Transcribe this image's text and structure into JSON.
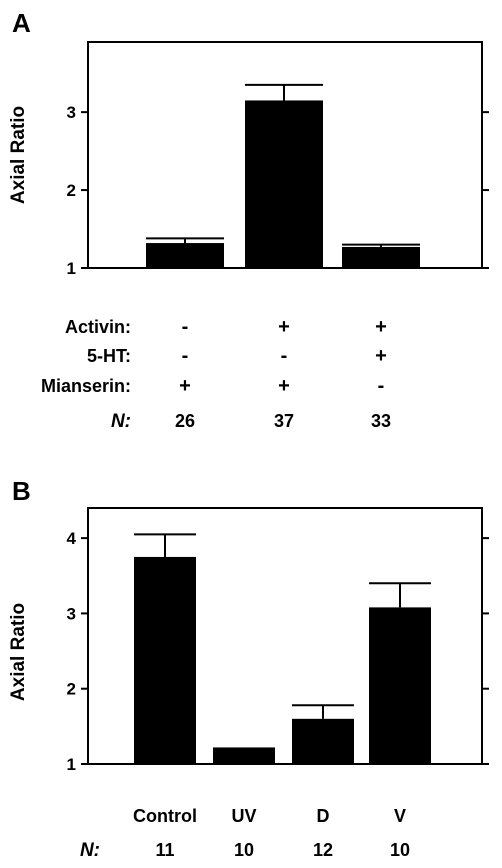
{
  "chart_data": [
    {
      "type": "bar",
      "panel_label": "A",
      "ylabel": "Axial Ratio",
      "ylim": [
        1,
        3.9
      ],
      "yticks": [
        1,
        2,
        3
      ],
      "ytick_labels": [
        "1",
        "2",
        "3"
      ],
      "categories": [
        "",
        "",
        ""
      ],
      "values": [
        1.32,
        3.15,
        1.27
      ],
      "errors": [
        0.06,
        0.2,
        0.03
      ],
      "color": "#000000",
      "conditions": [
        {
          "label": "Activin:",
          "values": [
            "-",
            "+",
            "+"
          ]
        },
        {
          "label": "5-HT:",
          "values": [
            "-",
            "-",
            "+"
          ]
        },
        {
          "label": "Mianserin:",
          "values": [
            "+",
            "+",
            "-"
          ]
        }
      ],
      "n_label": "N:",
      "n_values": [
        "26",
        "37",
        "33"
      ]
    },
    {
      "type": "bar",
      "panel_label": "B",
      "ylabel": "Axial Ratio",
      "ylim": [
        1,
        4.4
      ],
      "yticks": [
        1,
        2,
        3,
        4
      ],
      "ytick_labels": [
        "1",
        "2",
        "3",
        "4"
      ],
      "categories": [
        "Control",
        "UV",
        "D",
        "V"
      ],
      "values": [
        3.75,
        1.22,
        1.6,
        3.08
      ],
      "errors": [
        0.3,
        0.0,
        0.18,
        0.32
      ],
      "color": "#000000",
      "n_label": "N:",
      "n_values": [
        "11",
        "10",
        "12",
        "10"
      ]
    }
  ]
}
